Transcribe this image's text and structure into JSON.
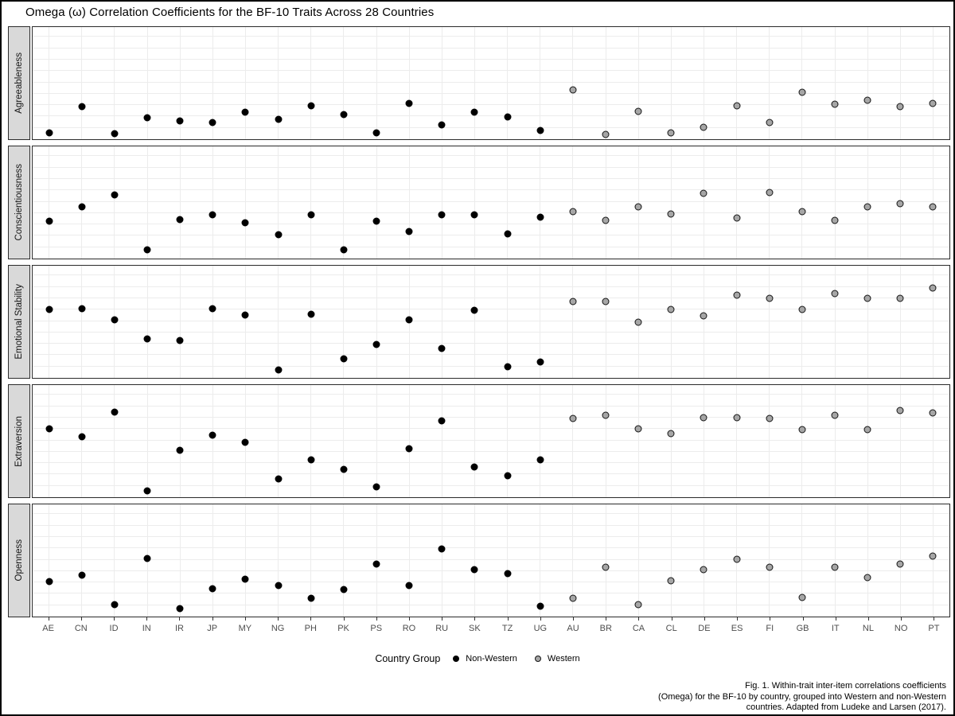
{
  "chart_data": {
    "type": "scatter",
    "title": "Omega (ω) Correlation Coefficients for the BF-10 Traits Across 28 Countries",
    "x_categories": [
      "AE",
      "CN",
      "ID",
      "IN",
      "IR",
      "JP",
      "MY",
      "NG",
      "PH",
      "PK",
      "PS",
      "RO",
      "RU",
      "SK",
      "TZ",
      "UG",
      "AU",
      "BR",
      "CA",
      "CL",
      "DE",
      "ES",
      "FI",
      "GB",
      "IT",
      "NL",
      "NO",
      "PT"
    ],
    "category_groups": {
      "Non-Western": [
        "AE",
        "CN",
        "ID",
        "IN",
        "IR",
        "JP",
        "MY",
        "NG",
        "PH",
        "PK",
        "PS",
        "RO",
        "RU",
        "SK",
        "TZ",
        "UG"
      ],
      "Western": [
        "AU",
        "BR",
        "CA",
        "CL",
        "DE",
        "ES",
        "FI",
        "GB",
        "IT",
        "NL",
        "NO",
        "PT"
      ]
    },
    "y_axis": {
      "label": "",
      "tick_labels_visible": false,
      "note": "No y tick labels shown in figure; values are estimated relative heights within each facet panel (0 = panel bottom, 1 = panel top)."
    },
    "grid": true,
    "legend": {
      "title": "Country Group",
      "position": "bottom",
      "items": [
        {
          "label": "Non-Western",
          "color": "#000000"
        },
        {
          "label": "Western",
          "color": "#a6a6a6"
        }
      ]
    },
    "facets": [
      {
        "trait": "Agreeableness",
        "values": [
          0.06,
          0.29,
          0.05,
          0.19,
          0.16,
          0.15,
          0.24,
          0.18,
          0.3,
          0.22,
          0.06,
          0.32,
          0.13,
          0.24,
          0.2,
          0.08,
          0.44,
          0.04,
          0.25,
          0.06,
          0.11,
          0.3,
          0.15,
          0.42,
          0.31,
          0.35,
          0.29,
          0.32
        ]
      },
      {
        "trait": "Conscientiousness",
        "values": [
          0.33,
          0.46,
          0.57,
          0.08,
          0.35,
          0.39,
          0.32,
          0.21,
          0.39,
          0.08,
          0.33,
          0.24,
          0.39,
          0.39,
          0.22,
          0.37,
          0.42,
          0.34,
          0.46,
          0.4,
          0.58,
          0.36,
          0.59,
          0.42,
          0.34,
          0.46,
          0.49,
          0.46
        ]
      },
      {
        "trait": "Emotional Stability",
        "values": [
          0.61,
          0.62,
          0.52,
          0.35,
          0.33,
          0.62,
          0.56,
          0.07,
          0.57,
          0.17,
          0.3,
          0.52,
          0.26,
          0.6,
          0.1,
          0.14,
          0.68,
          0.68,
          0.5,
          0.61,
          0.55,
          0.74,
          0.71,
          0.61,
          0.75,
          0.71,
          0.71,
          0.8
        ]
      },
      {
        "trait": "Extraversion",
        "values": [
          0.61,
          0.54,
          0.76,
          0.06,
          0.42,
          0.55,
          0.49,
          0.16,
          0.33,
          0.25,
          0.09,
          0.43,
          0.68,
          0.27,
          0.19,
          0.33,
          0.7,
          0.73,
          0.61,
          0.57,
          0.71,
          0.71,
          0.7,
          0.6,
          0.73,
          0.6,
          0.77,
          0.75
        ]
      },
      {
        "trait": "Openness",
        "values": [
          0.31,
          0.37,
          0.11,
          0.52,
          0.07,
          0.25,
          0.33,
          0.28,
          0.16,
          0.24,
          0.47,
          0.28,
          0.6,
          0.42,
          0.38,
          0.09,
          0.16,
          0.44,
          0.11,
          0.32,
          0.42,
          0.51,
          0.44,
          0.17,
          0.44,
          0.35,
          0.47,
          0.54
        ]
      }
    ],
    "caption_lines": [
      "Fig. 1. Within-trait inter-item correlations coefficients",
      "(Omega) for the BF-10 by country, grouped into Western and non-Western",
      "countries. Adapted from Ludeke and Larsen (2017)."
    ]
  },
  "colors": {
    "non_western_dot": "#000000",
    "western_dot": "#a6a6a6",
    "panel_border": "#2b2b2b",
    "strip_background": "#d9d9d9",
    "gridline": "#ececec",
    "tick_label": "#4d4d4d"
  }
}
